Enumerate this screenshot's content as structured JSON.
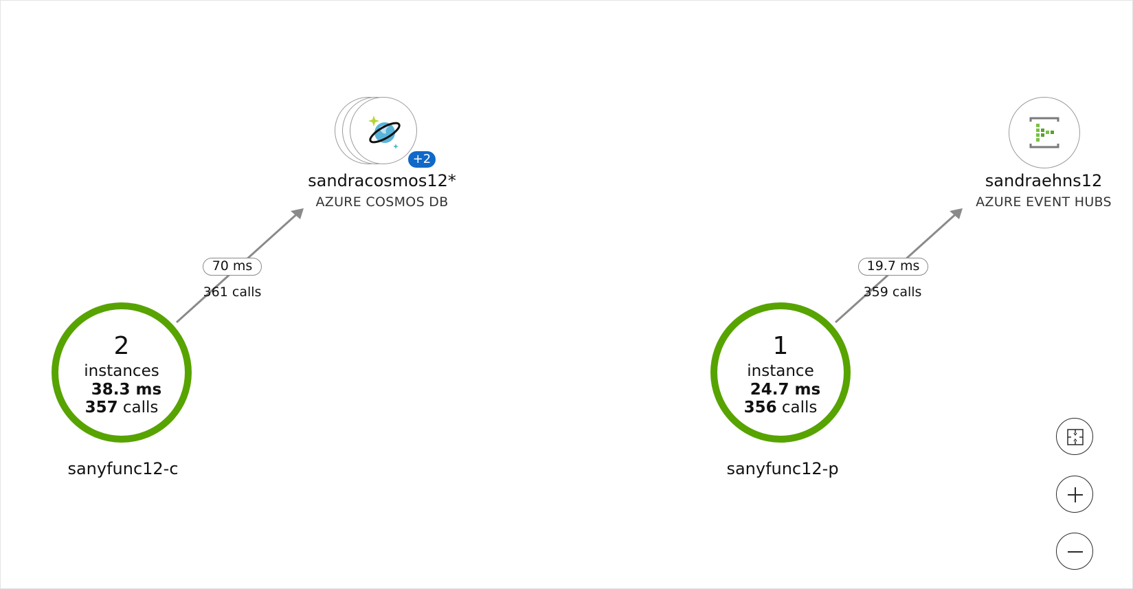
{
  "edges": [
    {
      "latency": "70 ms",
      "calls": "361 calls"
    },
    {
      "latency": "19.7 ms",
      "calls": "359 calls"
    }
  ],
  "apps": [
    {
      "count": "2",
      "unit": "instances",
      "ms": "38.3 ms",
      "calls_num": "357",
      "calls_word": "calls",
      "name": "sanyfunc12-c",
      "ring_color": "#57a300"
    },
    {
      "count": "1",
      "unit": "instance",
      "ms": "24.7 ms",
      "calls_num": "356",
      "calls_word": "calls",
      "name": "sanyfunc12-p",
      "ring_color": "#57a300"
    }
  ],
  "dependencies": [
    {
      "name": "sandracosmos12*",
      "type": "AZURE COSMOS DB",
      "badge": "+2",
      "icon": "cosmos-db-icon"
    },
    {
      "name": "sandraehns12",
      "type": "AZURE EVENT HUBS",
      "icon": "event-hubs-icon"
    }
  ],
  "controls": {
    "fit_icon": "fit-to-screen-icon",
    "zoom_in_icon": "plus-icon",
    "zoom_out_icon": "minus-icon"
  },
  "colors": {
    "healthy": "#57a300",
    "badge": "#1068c8",
    "edge": "#8a8a8a"
  }
}
